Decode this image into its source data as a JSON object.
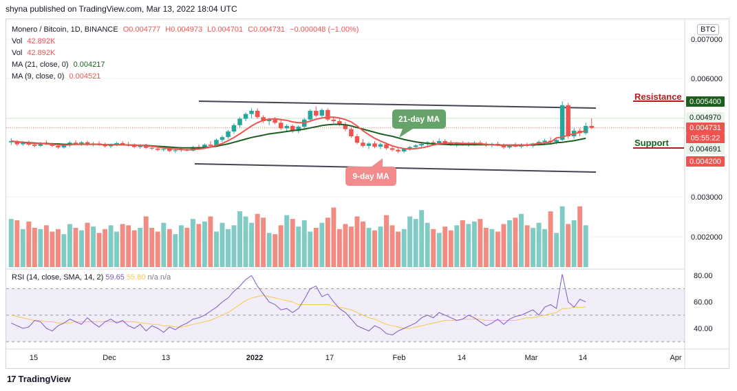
{
  "publisher": "shyna published on TradingView.com, Mar 13, 2022 18:04 UTC",
  "legend": {
    "symbol": "Monero / Bitcoin, 1D, BINANCE",
    "open": "O0.004777",
    "high": "H0.004973",
    "low": "L0.004701",
    "close": "C0.004731",
    "change": "−0.000048 (−1.00%)",
    "vol1_label": "Vol",
    "vol1_value": "42.892K",
    "vol2_label": "Vol",
    "vol2_value": "42.892K",
    "ma21_label": "MA (21, close, 0)",
    "ma21_value": "0.004217",
    "ma9_label": "MA (9, close, 0)",
    "ma9_value": "0.004521"
  },
  "rsi_legend": {
    "label": "RSI (14, close, SMA, 14, 2)",
    "rsi": "59.65",
    "sma": "55.80",
    "na1": "n/a",
    "na2": "n/a"
  },
  "annotations": {
    "ma21": "21-day MA",
    "ma9": "9-day MA",
    "resistance": "Resistance",
    "support": "Support"
  },
  "currency_button": "BTC",
  "footer": {
    "logo": "17",
    "brand": "TradingView"
  },
  "colors": {
    "up": "#26a69a",
    "down": "#ef5350",
    "ma21": "#1b5e20",
    "ma9": "#ef5350",
    "rsi": "#7e57c2",
    "rsi_sma": "#f7c948",
    "channel": "#434651"
  },
  "chart_data": {
    "type": "candlestick",
    "price_ticks": [
      "0.007000",
      "0.006000",
      "0.005400",
      "0.004970",
      "0.004731",
      "0.004691",
      "0.004200",
      "0.003000",
      "0.002000"
    ],
    "price_badges": [
      {
        "value": "0.005400",
        "style": "dark"
      },
      {
        "value": "0.004970",
        "style": "light"
      },
      {
        "value": "0.004731",
        "style": "red"
      },
      {
        "value": "05:55:22",
        "style": "red"
      },
      {
        "value": "0.004691",
        "style": "light"
      },
      {
        "value": "0.004200",
        "style": "red"
      }
    ],
    "rsi_ticks": [
      "80.00",
      "60.00",
      "40.00"
    ],
    "x_ticks": [
      "15",
      "Dec",
      "13",
      "2022",
      "17",
      "Feb",
      "14",
      "Mar",
      "14",
      "Apr"
    ],
    "candles": [
      [
        0.00437,
        0.00447,
        0.0043,
        0.0044
      ],
      [
        0.0044,
        0.00443,
        0.00428,
        0.00432
      ],
      [
        0.00432,
        0.0044,
        0.00428,
        0.00436
      ],
      [
        0.00436,
        0.00441,
        0.00428,
        0.00431
      ],
      [
        0.00431,
        0.00436,
        0.00424,
        0.00428
      ],
      [
        0.00428,
        0.00438,
        0.00425,
        0.00435
      ],
      [
        0.00435,
        0.00442,
        0.0043,
        0.00432
      ],
      [
        0.00432,
        0.00436,
        0.00425,
        0.00428
      ],
      [
        0.00428,
        0.00432,
        0.0042,
        0.00424
      ],
      [
        0.00424,
        0.00432,
        0.00421,
        0.00429
      ],
      [
        0.00429,
        0.0044,
        0.00425,
        0.00436
      ],
      [
        0.00436,
        0.00442,
        0.0043,
        0.00433
      ],
      [
        0.00433,
        0.0044,
        0.00428,
        0.00437
      ],
      [
        0.00437,
        0.00441,
        0.00428,
        0.00431
      ],
      [
        0.00431,
        0.00438,
        0.00427,
        0.00434
      ],
      [
        0.00434,
        0.0044,
        0.00428,
        0.0043
      ],
      [
        0.0043,
        0.00436,
        0.00424,
        0.00427
      ],
      [
        0.00427,
        0.00434,
        0.00423,
        0.00431
      ],
      [
        0.00431,
        0.00438,
        0.00427,
        0.00435
      ],
      [
        0.00435,
        0.0044,
        0.00429,
        0.00432
      ],
      [
        0.00432,
        0.00438,
        0.00426,
        0.00429
      ],
      [
        0.00429,
        0.00434,
        0.00422,
        0.00425
      ],
      [
        0.00425,
        0.00432,
        0.00421,
        0.00429
      ],
      [
        0.00429,
        0.00433,
        0.0042,
        0.00423
      ],
      [
        0.00423,
        0.00428,
        0.00418,
        0.00421
      ],
      [
        0.00421,
        0.00426,
        0.00415,
        0.00418
      ],
      [
        0.00418,
        0.00423,
        0.00414,
        0.0042
      ],
      [
        0.0042,
        0.00424,
        0.00412,
        0.00415
      ],
      [
        0.00415,
        0.0042,
        0.0041,
        0.00417
      ],
      [
        0.00417,
        0.00422,
        0.00413,
        0.00419
      ],
      [
        0.00419,
        0.00424,
        0.00414,
        0.00416
      ],
      [
        0.00416,
        0.00428,
        0.00414,
        0.00425
      ],
      [
        0.00425,
        0.00432,
        0.00419,
        0.00422
      ],
      [
        0.00422,
        0.00434,
        0.0042,
        0.00431
      ],
      [
        0.00431,
        0.0044,
        0.00426,
        0.00428
      ],
      [
        0.00428,
        0.00447,
        0.00425,
        0.00443
      ],
      [
        0.00443,
        0.00454,
        0.00438,
        0.0045
      ],
      [
        0.0045,
        0.00468,
        0.00446,
        0.00464
      ],
      [
        0.00464,
        0.00485,
        0.00458,
        0.0048
      ],
      [
        0.0048,
        0.005,
        0.00474,
        0.00496
      ],
      [
        0.00496,
        0.00512,
        0.0049,
        0.00508
      ],
      [
        0.00508,
        0.00522,
        0.00498,
        0.00516
      ],
      [
        0.00516,
        0.00522,
        0.00496,
        0.005
      ],
      [
        0.005,
        0.00505,
        0.00486,
        0.0049
      ],
      [
        0.0049,
        0.00498,
        0.0048,
        0.00494
      ],
      [
        0.00494,
        0.005,
        0.00482,
        0.00486
      ],
      [
        0.00486,
        0.00492,
        0.00468,
        0.00472
      ],
      [
        0.00472,
        0.00482,
        0.00465,
        0.00478
      ],
      [
        0.00478,
        0.00482,
        0.0046,
        0.00465
      ],
      [
        0.00465,
        0.0048,
        0.0046,
        0.00476
      ],
      [
        0.00476,
        0.00498,
        0.00472,
        0.00494
      ],
      [
        0.00494,
        0.0052,
        0.0049,
        0.00516
      ],
      [
        0.00516,
        0.00527,
        0.005,
        0.00504
      ],
      [
        0.00504,
        0.00522,
        0.00498,
        0.00518
      ],
      [
        0.00518,
        0.00522,
        0.0049,
        0.00494
      ],
      [
        0.00494,
        0.00502,
        0.00485,
        0.0049
      ],
      [
        0.0049,
        0.00496,
        0.00478,
        0.00482
      ],
      [
        0.00482,
        0.00488,
        0.00465,
        0.0047
      ],
      [
        0.0047,
        0.00475,
        0.00448,
        0.00452
      ],
      [
        0.00452,
        0.00458,
        0.00432,
        0.00436
      ],
      [
        0.00436,
        0.00445,
        0.00424,
        0.00428
      ],
      [
        0.00428,
        0.00438,
        0.0042,
        0.00434
      ],
      [
        0.00434,
        0.0044,
        0.00422,
        0.00426
      ],
      [
        0.00426,
        0.00436,
        0.0042,
        0.00432
      ],
      [
        0.00432,
        0.00436,
        0.00418,
        0.00422
      ],
      [
        0.00422,
        0.0043,
        0.00414,
        0.00418
      ],
      [
        0.00418,
        0.00424,
        0.0041,
        0.00414
      ],
      [
        0.00414,
        0.00422,
        0.0041,
        0.0042
      ],
      [
        0.0042,
        0.00428,
        0.00416,
        0.00425
      ],
      [
        0.00425,
        0.00432,
        0.0042,
        0.00429
      ],
      [
        0.00429,
        0.00436,
        0.00424,
        0.00433
      ],
      [
        0.00433,
        0.0044,
        0.00427,
        0.00437
      ],
      [
        0.00437,
        0.00442,
        0.0043,
        0.00434
      ],
      [
        0.00434,
        0.00446,
        0.0043,
        0.0044
      ],
      [
        0.0044,
        0.00445,
        0.00432,
        0.00436
      ],
      [
        0.00436,
        0.00442,
        0.00428,
        0.00432
      ],
      [
        0.00432,
        0.00438,
        0.00425,
        0.00435
      ],
      [
        0.00435,
        0.0044,
        0.00428,
        0.00431
      ],
      [
        0.00431,
        0.00438,
        0.00426,
        0.00434
      ],
      [
        0.00434,
        0.0044,
        0.00428,
        0.00436
      ],
      [
        0.00436,
        0.00441,
        0.0043,
        0.00433
      ],
      [
        0.00433,
        0.00438,
        0.00426,
        0.0043
      ],
      [
        0.0043,
        0.00436,
        0.00424,
        0.00433
      ],
      [
        0.00433,
        0.00438,
        0.00427,
        0.00429
      ],
      [
        0.00429,
        0.00434,
        0.0042,
        0.00424
      ],
      [
        0.00424,
        0.00432,
        0.0042,
        0.0043
      ],
      [
        0.0043,
        0.00436,
        0.00424,
        0.00426
      ],
      [
        0.00426,
        0.00434,
        0.00422,
        0.00431
      ],
      [
        0.00431,
        0.00436,
        0.00425,
        0.00428
      ],
      [
        0.00428,
        0.00436,
        0.00424,
        0.00434
      ],
      [
        0.00434,
        0.00442,
        0.0043,
        0.00438
      ],
      [
        0.00438,
        0.00446,
        0.0043,
        0.00441
      ],
      [
        0.00441,
        0.0045,
        0.00434,
        0.00438
      ],
      [
        0.00438,
        0.00445,
        0.00432,
        0.00443
      ],
      [
        0.00443,
        0.0054,
        0.0044,
        0.0053
      ],
      [
        0.0053,
        0.00536,
        0.00446,
        0.00452
      ],
      [
        0.00452,
        0.00472,
        0.00446,
        0.00466
      ],
      [
        0.00466,
        0.00472,
        0.00452,
        0.0046
      ],
      [
        0.0046,
        0.00486,
        0.00456,
        0.00478
      ],
      [
        0.00478,
        0.00497,
        0.0047,
        0.00473
      ]
    ],
    "volume_values": [
      38,
      37,
      30,
      36,
      31,
      30,
      33,
      28,
      30,
      26,
      34,
      31,
      29,
      35,
      32,
      27,
      30,
      33,
      28,
      34,
      33,
      29,
      31,
      40,
      31,
      28,
      35,
      30,
      26,
      33,
      31,
      38,
      34,
      36,
      40,
      28,
      35,
      30,
      33,
      44,
      40,
      35,
      42,
      39,
      27,
      26,
      33,
      41,
      38,
      32,
      37,
      28,
      31,
      35,
      39,
      47,
      30,
      34,
      32,
      40,
      36,
      31,
      29,
      32,
      41,
      33,
      28,
      30,
      40,
      38,
      45,
      35,
      30,
      27,
      32,
      29,
      33,
      37,
      34,
      36,
      38,
      31,
      30,
      28,
      34,
      37,
      39,
      42,
      33,
      31,
      35,
      30,
      44,
      27,
      48,
      34,
      37,
      48,
      33
    ],
    "rsi_values": [
      44,
      42,
      40,
      41,
      46,
      45,
      40,
      38,
      42,
      44,
      47,
      45,
      43,
      48,
      44,
      41,
      45,
      47,
      44,
      46,
      42,
      40,
      43,
      38,
      42,
      40,
      37,
      41,
      39,
      42,
      44,
      47,
      48,
      50,
      53,
      56,
      60,
      63,
      68,
      72,
      77,
      80,
      72,
      66,
      60,
      58,
      54,
      55,
      52,
      55,
      62,
      70,
      72,
      64,
      66,
      60,
      55,
      52,
      47,
      42,
      40,
      38,
      42,
      40,
      36,
      35,
      38,
      40,
      42,
      44,
      48,
      50,
      48,
      52,
      50,
      48,
      46,
      47,
      50,
      48,
      45,
      42,
      44,
      47,
      43,
      47,
      49,
      50,
      52,
      54,
      50,
      56,
      58,
      55,
      81,
      60,
      56,
      62,
      60
    ],
    "rsi_sma_values": [
      50,
      49,
      48,
      47,
      46,
      46,
      45,
      45,
      44,
      44,
      44,
      45,
      45,
      45,
      45,
      45,
      45,
      45,
      45,
      45,
      45,
      45,
      44,
      44,
      43,
      43,
      42,
      42,
      41,
      41,
      42,
      43,
      44,
      45,
      46,
      48,
      50,
      52,
      55,
      58,
      61,
      63,
      64,
      65,
      64,
      63,
      62,
      61,
      60,
      58,
      58,
      58,
      58,
      58,
      58,
      57,
      56,
      55,
      54,
      52,
      50,
      48,
      47,
      45,
      43,
      42,
      41,
      40,
      40,
      41,
      42,
      43,
      44,
      45,
      46,
      46,
      46,
      47,
      47,
      47,
      47,
      46,
      46,
      46,
      46,
      46,
      46,
      47,
      48,
      48,
      49,
      50,
      51,
      52,
      55,
      55,
      56,
      56,
      56
    ],
    "ma21_values": [
      0.0044,
      0.00438,
      0.00437,
      0.00436,
      0.00435,
      0.00434,
      0.00434,
      0.00433,
      0.00433,
      0.00432,
      0.00432,
      0.00432,
      0.00432,
      0.00432,
      0.00432,
      0.00432,
      0.00431,
      0.00431,
      0.00431,
      0.00431,
      0.0043,
      0.0043,
      0.00429,
      0.00429,
      0.00428,
      0.00427,
      0.00426,
      0.00425,
      0.00424,
      0.00423,
      0.00423,
      0.00423,
      0.00423,
      0.00424,
      0.00425,
      0.00427,
      0.0043,
      0.00433,
      0.00437,
      0.00441,
      0.00445,
      0.00449,
      0.00452,
      0.00455,
      0.00458,
      0.0046,
      0.00462,
      0.00464,
      0.00466,
      0.00468,
      0.0047,
      0.00473,
      0.00476,
      0.00479,
      0.00481,
      0.00482,
      0.00482,
      0.00481,
      0.00478,
      0.00474,
      0.0047,
      0.00466,
      0.00462,
      0.00458,
      0.00455,
      0.00452,
      0.00448,
      0.00444,
      0.00441,
      0.00438,
      0.00436,
      0.00434,
      0.00433,
      0.00432,
      0.00432,
      0.00431,
      0.00431,
      0.00431,
      0.00431,
      0.00431,
      0.00431,
      0.00431,
      0.00431,
      0.0043,
      0.0043,
      0.0043,
      0.0043,
      0.0043,
      0.0043,
      0.00431,
      0.00431,
      0.00432,
      0.00433,
      0.00436,
      0.00437,
      0.00439,
      0.00441,
      0.00444,
      0.00447
    ],
    "ma9_values": [
      0.0044,
      0.00438,
      0.00436,
      0.00435,
      0.00434,
      0.00434,
      0.00433,
      0.00432,
      0.00431,
      0.0043,
      0.00431,
      0.00432,
      0.00432,
      0.00432,
      0.00432,
      0.00432,
      0.00431,
      0.00431,
      0.00431,
      0.00431,
      0.0043,
      0.0043,
      0.00429,
      0.00428,
      0.00427,
      0.00425,
      0.00423,
      0.00421,
      0.0042,
      0.00419,
      0.00418,
      0.00419,
      0.0042,
      0.00422,
      0.00425,
      0.00429,
      0.00434,
      0.00441,
      0.00449,
      0.00458,
      0.00468,
      0.00478,
      0.00486,
      0.00492,
      0.00495,
      0.00496,
      0.00494,
      0.00492,
      0.00488,
      0.00486,
      0.00486,
      0.0049,
      0.00495,
      0.00498,
      0.005,
      0.005,
      0.00498,
      0.00494,
      0.00488,
      0.00478,
      0.00466,
      0.00456,
      0.00447,
      0.0044,
      0.00434,
      0.00428,
      0.00424,
      0.00421,
      0.0042,
      0.00421,
      0.00423,
      0.00426,
      0.0043,
      0.00433,
      0.00435,
      0.00435,
      0.00435,
      0.00434,
      0.00434,
      0.00434,
      0.00433,
      0.00432,
      0.00431,
      0.0043,
      0.00429,
      0.00429,
      0.00429,
      0.00429,
      0.0043,
      0.00432,
      0.00434,
      0.00436,
      0.00437,
      0.00448,
      0.0045,
      0.00455,
      0.00458,
      0.00462,
      0.00466
    ]
  }
}
